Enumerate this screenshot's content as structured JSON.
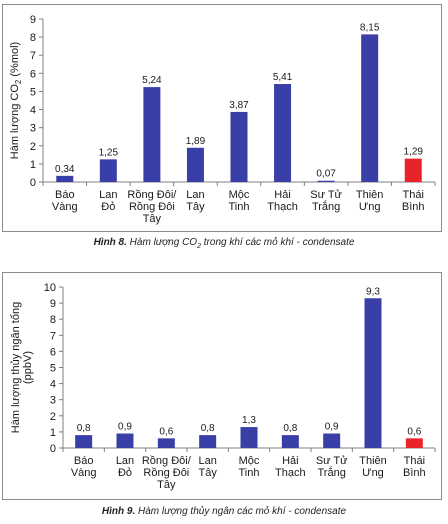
{
  "chart_data": [
    {
      "type": "bar",
      "title": "",
      "ylabel": "Hàm lượng CO2 (%mol)",
      "ylabel_main": "Hàm lượng CO",
      "ylabel_sub": "2",
      "ylabel_tail": " (%mol)",
      "xlabel": "",
      "ylim": [
        0,
        9
      ],
      "yticks": [
        "0",
        "1",
        "2",
        "3",
        "4",
        "5",
        "6",
        "7",
        "8",
        "9"
      ],
      "ytick_values": [
        0,
        1,
        2,
        3,
        4,
        5,
        6,
        7,
        8,
        9
      ],
      "grid": false,
      "categories": [
        [
          "Báo",
          "Vàng"
        ],
        [
          "Lan",
          "Đỏ"
        ],
        [
          "Rồng Đôi/",
          "Rồng Đôi",
          "Tây"
        ],
        [
          "Lan",
          "Tây"
        ],
        [
          "Mộc",
          "Tinh"
        ],
        [
          "Hải",
          "Thạch"
        ],
        [
          "Sư Tử",
          "Trắng"
        ],
        [
          "Thiên",
          "Ưng"
        ],
        [
          "Thái",
          "Bình"
        ]
      ],
      "values": [
        0.34,
        1.25,
        5.24,
        1.89,
        3.87,
        5.41,
        0.07,
        8.15,
        1.29
      ],
      "value_labels": [
        "0,34",
        "1,25",
        "5,24",
        "1,89",
        "3,87",
        "5,41",
        "0,07",
        "8,15",
        "1,29"
      ],
      "colors": [
        "#3a3fa8",
        "#3a3fa8",
        "#3a3fa8",
        "#3a3fa8",
        "#3a3fa8",
        "#3a3fa8",
        "#3a3fa8",
        "#3a3fa8",
        "#e8242a"
      ]
    },
    {
      "type": "bar",
      "title": "",
      "ylabel": "Hàm lượng thủy ngân tổng (ppbV)",
      "ylabel_lines": [
        "Hàm lượng thủy ngân tổng",
        "(ppbV)"
      ],
      "xlabel": "",
      "ylim": [
        0,
        10
      ],
      "yticks": [
        "0",
        "1",
        "2",
        "3",
        "4",
        "5",
        "6",
        "7",
        "8",
        "9",
        "10"
      ],
      "ytick_values": [
        0,
        1,
        2,
        3,
        4,
        5,
        6,
        7,
        8,
        9,
        10
      ],
      "grid": false,
      "categories": [
        [
          "Báo",
          "Vàng"
        ],
        [
          "Lan",
          "Đỏ"
        ],
        [
          "Rồng Đôi/",
          "Rồng Đôi",
          "Tây"
        ],
        [
          "Lan",
          "Tây"
        ],
        [
          "Mộc",
          "Tinh"
        ],
        [
          "Hải",
          "Thạch"
        ],
        [
          "Sư Tử",
          "Trắng"
        ],
        [
          "Thiên",
          "Ưng"
        ],
        [
          "Thái",
          "Bình"
        ]
      ],
      "values": [
        0.8,
        0.9,
        0.6,
        0.8,
        1.3,
        0.8,
        0.9,
        9.3,
        0.6
      ],
      "value_labels": [
        "0,8",
        "0,9",
        "0,6",
        "0,8",
        "1,3",
        "0,8",
        "0,9",
        "9,3",
        "0,6"
      ],
      "colors": [
        "#3a3fa8",
        "#3a3fa8",
        "#3a3fa8",
        "#3a3fa8",
        "#3a3fa8",
        "#3a3fa8",
        "#3a3fa8",
        "#3a3fa8",
        "#e8242a"
      ]
    }
  ],
  "captions": {
    "fig1_label": "Hình 8.",
    "fig1_text_a": " Hàm lượng CO",
    "fig1_sub": "2",
    "fig1_text_b": " trong khí các mỏ khí - condensate",
    "fig2_label": "Hình 9.",
    "fig2_text": " Hàm lượng thủy ngân các mỏ khí - condensate"
  }
}
